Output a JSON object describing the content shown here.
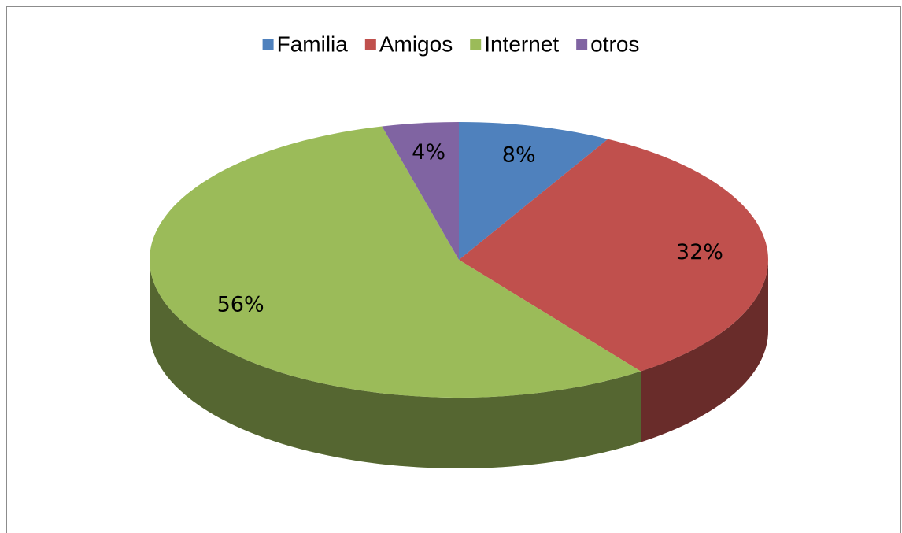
{
  "chart_data": {
    "type": "pie",
    "categories": [
      "Familia",
      "Amigos",
      "Internet",
      "otros"
    ],
    "values": [
      8,
      32,
      56,
      4
    ],
    "value_labels": [
      "8%",
      "32%",
      "56%",
      "4%"
    ],
    "colors": [
      "#4f81bd",
      "#c0504d",
      "#9bbb59",
      "#8064a2"
    ],
    "legend": "top"
  }
}
